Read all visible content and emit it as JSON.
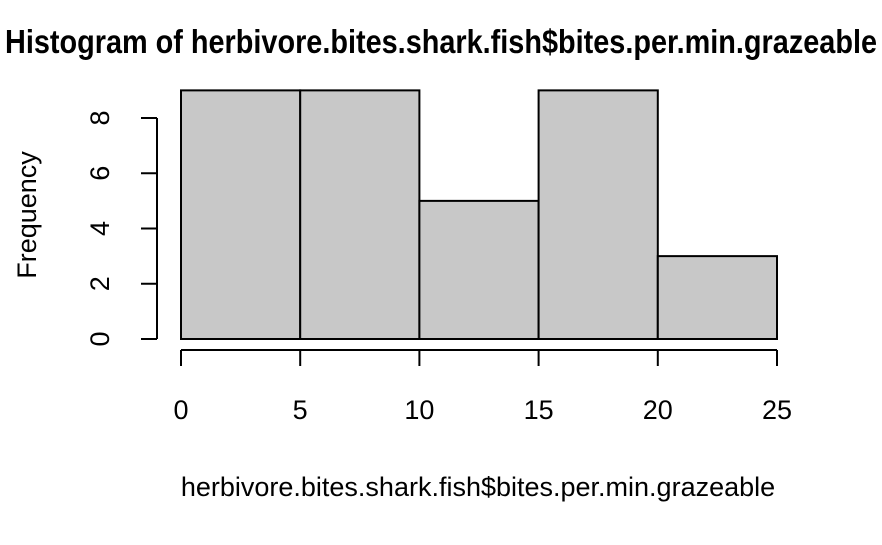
{
  "chart_data": {
    "type": "bar",
    "title": "Histogram of herbivore.bites.shark.fish$bites.per.min.grazeable",
    "xlabel": "herbivore.bites.shark.fish$bites.per.min.grazeable",
    "ylabel": "Frequency",
    "bins": [
      {
        "from": 0,
        "to": 5,
        "count": 9
      },
      {
        "from": 5,
        "to": 10,
        "count": 9
      },
      {
        "from": 10,
        "to": 15,
        "count": 5
      },
      {
        "from": 15,
        "to": 20,
        "count": 9
      },
      {
        "from": 20,
        "to": 25,
        "count": 3
      }
    ],
    "xlim": [
      0,
      25
    ],
    "ylim": [
      0,
      8
    ],
    "x_ticks": [
      0,
      5,
      10,
      15,
      20,
      25
    ],
    "y_ticks": [
      0,
      2,
      4,
      6,
      8
    ],
    "bar_color": "#c8c8c8",
    "edge_color": "#000000",
    "grid": false,
    "legend": "none"
  }
}
